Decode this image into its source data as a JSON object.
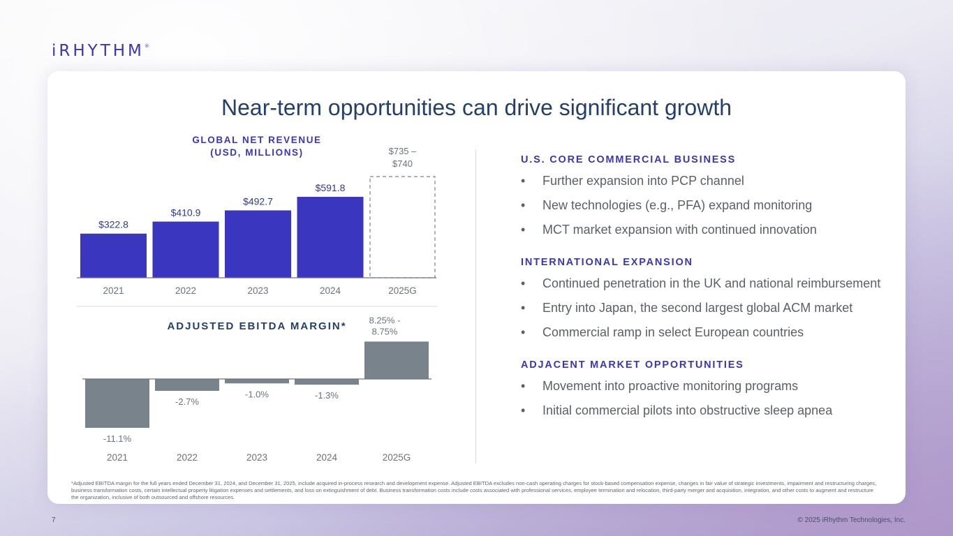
{
  "brand": {
    "logo": "iRHYTHM",
    "registered": "®"
  },
  "title": "Near-term opportunities can drive significant growth",
  "colors": {
    "revenue_bar": "#3b36bf",
    "ebitda_bar": "#78838b",
    "accent": "#3a36b8",
    "title": "#24406a"
  },
  "chart_data": [
    {
      "type": "bar",
      "title": "GLOBAL NET REVENUE",
      "subtitle": "(USD, MILLIONS)",
      "categories": [
        "2021",
        "2022",
        "2023",
        "2024",
        "2025G"
      ],
      "values": [
        322.8,
        410.9,
        492.7,
        591.8,
        740
      ],
      "value_labels": [
        "$322.8",
        "$410.9",
        "$492.7",
        "$591.8",
        "$735 –\n$740"
      ],
      "guidance_label_lines": [
        "$735 –",
        "$740"
      ],
      "guidance_range": [
        735,
        740
      ],
      "ylim": [
        0,
        740
      ]
    },
    {
      "type": "bar",
      "title": "ADJUSTED EBITDA MARGIN*",
      "categories": [
        "2021",
        "2022",
        "2023",
        "2024",
        "2025G"
      ],
      "values": [
        -11.1,
        -2.7,
        -1.0,
        -1.3,
        8.5
      ],
      "value_labels": [
        "-11.1%",
        "-2.7%",
        "-1.0%",
        "-1.3%",
        "8.25% -\n8.75%"
      ],
      "guidance_label_lines": [
        "8.25% -",
        "8.75%"
      ],
      "guidance_range": [
        8.25,
        8.75
      ],
      "ylim": [
        -11.1,
        8.5
      ]
    }
  ],
  "sections": [
    {
      "heading": "U.S. CORE COMMERCIAL BUSINESS",
      "bullets": [
        "Further expansion into PCP channel",
        "New technologies (e.g., PFA) expand monitoring",
        "MCT market expansion with continued innovation"
      ]
    },
    {
      "heading": "INTERNATIONAL EXPANSION",
      "bullets": [
        "Continued penetration in the UK and national reimbursement",
        "Entry into Japan, the second largest global ACM market",
        "Commercial ramp in select European countries"
      ]
    },
    {
      "heading": "ADJACENT MARKET OPPORTUNITIES",
      "bullets": [
        "Movement into proactive monitoring programs",
        "Initial commercial pilots into obstructive sleep apnea"
      ]
    }
  ],
  "bullet_symbol": "•",
  "footnote": "*Adjusted EBITDA margin for the full years ended December 31, 2024, and December 31, 2025, include acquired in-process research and development expense. Adjusted EBITDA excludes non-cash operating charges for stock-based compensation expense, changes in fair value of strategic investments, impairment and restructuring charges, business transformation costs, certain intellectual property litigation expenses and settlements, and loss on extinguishment of debt. Business transformation costs include costs associated with professional services, employee termination and relocation, third-party merger and acquisition, integration, and other costs to augment and restructure the organization, inclusive of both outsourced and offshore resources.",
  "page_number": "7",
  "copyright": "© 2025 iRhythm Technologies, Inc."
}
